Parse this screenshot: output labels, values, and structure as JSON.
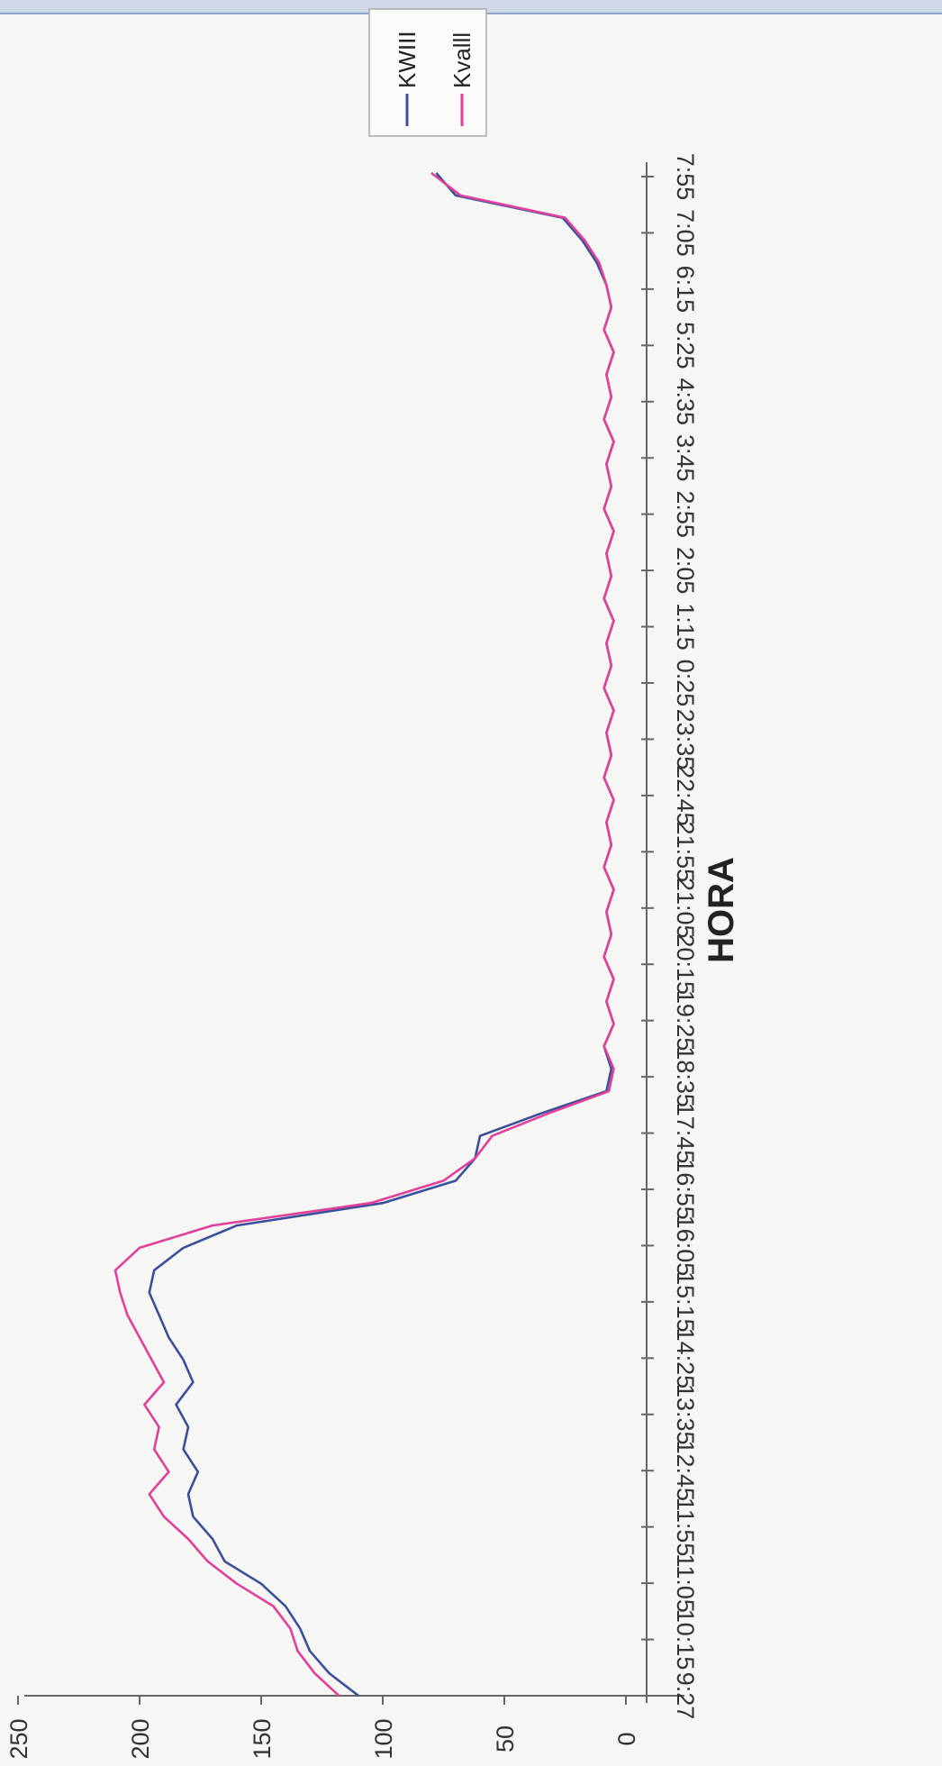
{
  "chart_data": {
    "type": "line",
    "orientation": "rotated 90 degrees clockwise (scanned page)",
    "title": "",
    "xlabel": "HORA",
    "ylabel": "",
    "x_tick_labels": [
      "9:27",
      "10:15",
      "11:05",
      "11:55",
      "12:45",
      "13:35",
      "14:25",
      "15:15",
      "16:05",
      "16:55",
      "17:45",
      "18:35",
      "19:25",
      "20:15",
      "21:05",
      "21:55",
      "22:45",
      "23:35",
      "0:25",
      "1:15",
      "2:05",
      "2:55",
      "3:45",
      "4:35",
      "5:25",
      "6:15",
      "7:05",
      "7:55"
    ],
    "y_ticks": [
      0,
      50,
      100,
      150,
      200,
      250
    ],
    "ylim": [
      0,
      250
    ],
    "grid": false,
    "legend_position": "top-right",
    "x": [
      "9:27",
      "9:45",
      "10:05",
      "10:25",
      "10:45",
      "11:05",
      "11:25",
      "11:45",
      "12:05",
      "12:25",
      "12:45",
      "13:05",
      "13:25",
      "13:45",
      "14:05",
      "14:25",
      "14:45",
      "15:05",
      "15:25",
      "15:45",
      "16:05",
      "16:25",
      "16:45",
      "17:05",
      "17:25",
      "17:45",
      "18:05",
      "18:25",
      "18:45",
      "19:05",
      "19:25",
      "19:45",
      "20:05",
      "20:25",
      "20:45",
      "21:05",
      "21:25",
      "21:45",
      "22:05",
      "22:25",
      "22:45",
      "23:05",
      "23:25",
      "23:45",
      "0:05",
      "0:25",
      "0:45",
      "1:05",
      "1:25",
      "1:45",
      "2:05",
      "2:25",
      "2:45",
      "3:05",
      "3:25",
      "3:45",
      "4:05",
      "4:25",
      "4:45",
      "5:05",
      "5:25",
      "5:45",
      "6:05",
      "6:25",
      "6:45",
      "7:05",
      "7:25",
      "7:45",
      "7:55"
    ],
    "series": [
      {
        "name": "KWIII",
        "color": "#3a4f9a",
        "values": [
          110,
          122,
          130,
          134,
          140,
          150,
          165,
          170,
          178,
          180,
          176,
          182,
          180,
          185,
          178,
          182,
          188,
          192,
          196,
          194,
          182,
          160,
          100,
          70,
          62,
          60,
          35,
          8,
          6,
          9,
          5,
          8,
          5,
          9,
          6,
          8,
          5,
          9,
          6,
          8,
          5,
          9,
          6,
          8,
          5,
          9,
          6,
          8,
          5,
          9,
          6,
          8,
          5,
          9,
          6,
          8,
          5,
          9,
          6,
          8,
          5,
          9,
          6,
          8,
          12,
          18,
          26,
          70,
          78
        ]
      },
      {
        "name": "Kvalll",
        "color": "#e0409a",
        "values": [
          118,
          128,
          135,
          138,
          145,
          160,
          172,
          180,
          190,
          196,
          188,
          194,
          192,
          198,
          190,
          195,
          200,
          205,
          208,
          210,
          200,
          170,
          105,
          75,
          62,
          55,
          32,
          7,
          5,
          9,
          5,
          8,
          5,
          9,
          6,
          8,
          5,
          9,
          6,
          8,
          5,
          9,
          6,
          8,
          5,
          9,
          6,
          8,
          5,
          9,
          6,
          8,
          5,
          9,
          6,
          8,
          5,
          9,
          6,
          8,
          5,
          9,
          6,
          8,
          11,
          17,
          25,
          68,
          80
        ]
      }
    ]
  }
}
